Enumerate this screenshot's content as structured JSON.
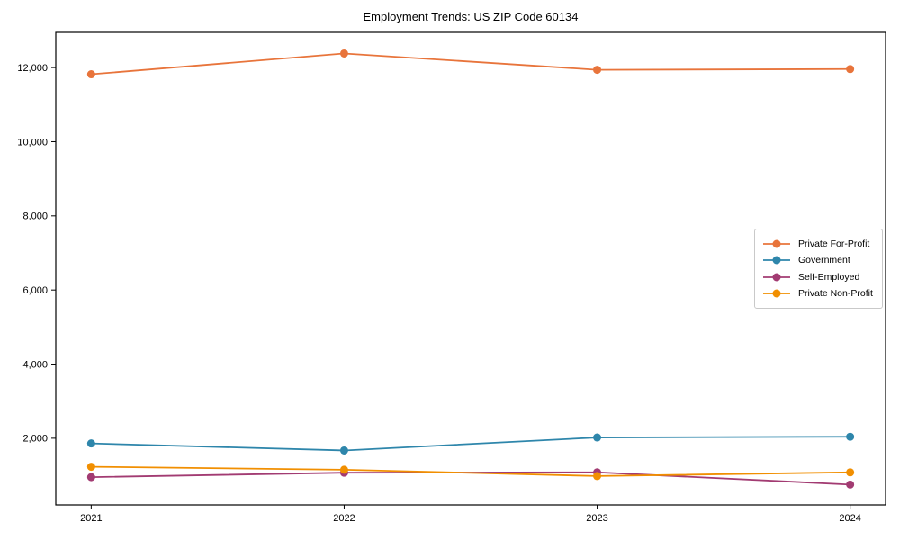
{
  "window": {
    "background": "#ffffff"
  },
  "chart_data": {
    "type": "line",
    "title": "Employment Trends: US ZIP Code 60134",
    "xlabel": "",
    "ylabel": "",
    "x": [
      2021,
      2022,
      2023,
      2024
    ],
    "x_tick_labels": [
      "2021",
      "2022",
      "2023",
      "2024"
    ],
    "y_ticks": [
      2000,
      4000,
      6000,
      8000,
      10000,
      12000
    ],
    "y_tick_labels": [
      "2,000",
      "4,000",
      "6,000",
      "8,000",
      "10,000",
      "12,000"
    ],
    "xlim": [
      2020.86,
      2024.14
    ],
    "ylim": [
      200,
      12950
    ],
    "grid": false,
    "legend_position": "center right",
    "series": [
      {
        "name": "Private For-Profit",
        "color": "#E8743B",
        "values": [
          11820,
          12380,
          11940,
          11960
        ]
      },
      {
        "name": "Government",
        "color": "#2E86AB",
        "values": [
          1860,
          1670,
          2020,
          2040
        ]
      },
      {
        "name": "Self-Employed",
        "color": "#A23B72",
        "values": [
          950,
          1070,
          1080,
          750
        ]
      },
      {
        "name": "Private Non-Profit",
        "color": "#F18F01",
        "values": [
          1230,
          1150,
          980,
          1080
        ]
      }
    ]
  }
}
